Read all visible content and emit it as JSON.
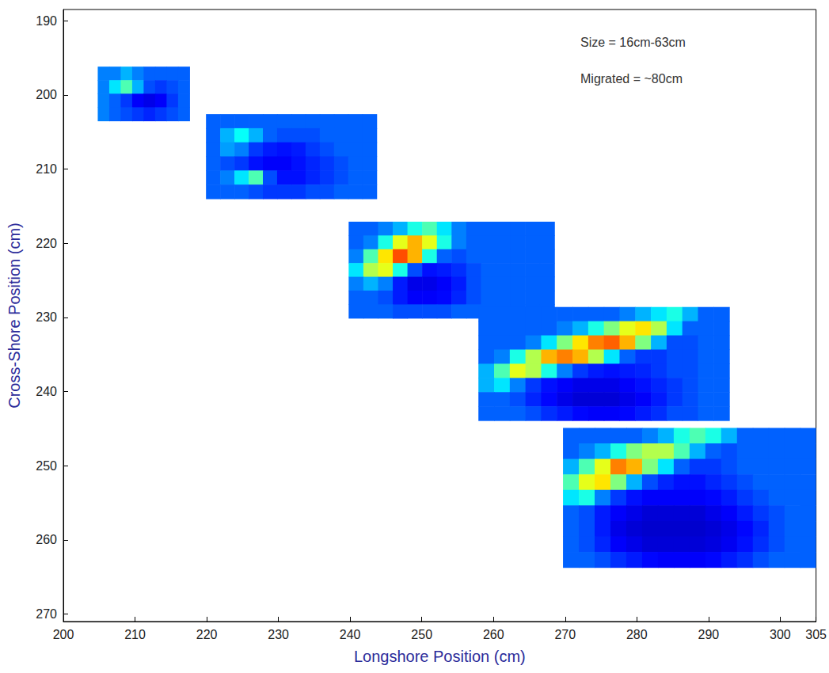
{
  "chart_data": {
    "type": "heatmap",
    "xlabel": "Longshore Position (cm)",
    "ylabel": "Cross-Shore Position (cm)",
    "annotations": [
      "Size = 16cm-63cm",
      "Migrated = ~80cm"
    ],
    "xlim": [
      200,
      305
    ],
    "ylim": [
      188.5,
      271
    ],
    "xticks": [
      200,
      210,
      220,
      230,
      240,
      250,
      260,
      270,
      280,
      290,
      300
    ],
    "yticks": [
      190,
      200,
      210,
      220,
      230,
      240,
      250,
      260,
      270
    ],
    "grid": false,
    "color_range": [
      0,
      1
    ],
    "patches": [
      {
        "x": [
          204.8,
          217.6
        ],
        "y": [
          196.2,
          203.5
        ],
        "values": [
          [
            0.25,
            0.25,
            0.3,
            0.25,
            0.22,
            0.22,
            0.22,
            0.22
          ],
          [
            0.25,
            0.35,
            0.45,
            0.3,
            0.2,
            0.18,
            0.2,
            0.22
          ],
          [
            0.25,
            0.22,
            0.18,
            0.12,
            0.1,
            0.12,
            0.18,
            0.22
          ],
          [
            0.25,
            0.22,
            0.2,
            0.18,
            0.16,
            0.18,
            0.2,
            0.22
          ]
        ]
      },
      {
        "x": [
          219.9,
          243.7
        ],
        "y": [
          202.6,
          214.0
        ],
        "values": [
          [
            0.22,
            0.22,
            0.22,
            0.22,
            0.22,
            0.22,
            0.22,
            0.22,
            0.22,
            0.22,
            0.22,
            0.22
          ],
          [
            0.22,
            0.3,
            0.38,
            0.3,
            0.22,
            0.2,
            0.2,
            0.2,
            0.22,
            0.22,
            0.22,
            0.22
          ],
          [
            0.22,
            0.28,
            0.25,
            0.18,
            0.15,
            0.14,
            0.15,
            0.18,
            0.2,
            0.22,
            0.22,
            0.22
          ],
          [
            0.22,
            0.2,
            0.18,
            0.14,
            0.12,
            0.12,
            0.14,
            0.16,
            0.18,
            0.2,
            0.22,
            0.22
          ],
          [
            0.22,
            0.25,
            0.35,
            0.45,
            0.2,
            0.14,
            0.14,
            0.16,
            0.18,
            0.2,
            0.22,
            0.22
          ],
          [
            0.22,
            0.22,
            0.22,
            0.2,
            0.18,
            0.18,
            0.18,
            0.2,
            0.2,
            0.22,
            0.22,
            0.22
          ]
        ]
      },
      {
        "x": [
          239.8,
          268.5
        ],
        "y": [
          217.1,
          230.1
        ],
        "values": [
          [
            0.22,
            0.22,
            0.25,
            0.3,
            0.4,
            0.45,
            0.35,
            0.25,
            0.22,
            0.22,
            0.22,
            0.22,
            0.22,
            0.22
          ],
          [
            0.22,
            0.25,
            0.4,
            0.6,
            0.7,
            0.6,
            0.4,
            0.25,
            0.22,
            0.22,
            0.22,
            0.22,
            0.22,
            0.22
          ],
          [
            0.25,
            0.45,
            0.65,
            0.8,
            0.7,
            0.4,
            0.22,
            0.2,
            0.22,
            0.22,
            0.22,
            0.22,
            0.22,
            0.22
          ],
          [
            0.35,
            0.55,
            0.6,
            0.4,
            0.2,
            0.14,
            0.15,
            0.17,
            0.2,
            0.22,
            0.22,
            0.22,
            0.22,
            0.22
          ],
          [
            0.25,
            0.3,
            0.25,
            0.15,
            0.1,
            0.1,
            0.12,
            0.15,
            0.2,
            0.22,
            0.22,
            0.22,
            0.22,
            0.22
          ],
          [
            0.22,
            0.22,
            0.2,
            0.15,
            0.12,
            0.12,
            0.13,
            0.16,
            0.2,
            0.22,
            0.22,
            0.22,
            0.22,
            0.22
          ],
          [
            0.22,
            0.22,
            0.22,
            0.2,
            0.2,
            0.2,
            0.2,
            0.22,
            0.22,
            0.22,
            0.22,
            0.22,
            0.22,
            0.22
          ]
        ]
      },
      {
        "x": [
          257.9,
          292.9
        ],
        "y": [
          228.6,
          243.9
        ],
        "values": [
          [
            0.22,
            0.22,
            0.22,
            0.22,
            0.22,
            0.22,
            0.22,
            0.22,
            0.22,
            0.25,
            0.3,
            0.35,
            0.4,
            0.3,
            0.22,
            0.22
          ],
          [
            0.22,
            0.22,
            0.22,
            0.22,
            0.22,
            0.25,
            0.3,
            0.4,
            0.5,
            0.6,
            0.65,
            0.55,
            0.35,
            0.22,
            0.22,
            0.22
          ],
          [
            0.22,
            0.22,
            0.22,
            0.25,
            0.35,
            0.5,
            0.65,
            0.75,
            0.78,
            0.7,
            0.5,
            0.3,
            0.2,
            0.2,
            0.22,
            0.22
          ],
          [
            0.22,
            0.25,
            0.4,
            0.55,
            0.7,
            0.75,
            0.7,
            0.55,
            0.35,
            0.22,
            0.18,
            0.18,
            0.2,
            0.2,
            0.22,
            0.22
          ],
          [
            0.3,
            0.45,
            0.6,
            0.55,
            0.4,
            0.25,
            0.18,
            0.15,
            0.14,
            0.15,
            0.16,
            0.18,
            0.2,
            0.2,
            0.22,
            0.22
          ],
          [
            0.3,
            0.35,
            0.25,
            0.18,
            0.14,
            0.12,
            0.1,
            0.1,
            0.1,
            0.12,
            0.14,
            0.16,
            0.18,
            0.2,
            0.22,
            0.22
          ],
          [
            0.22,
            0.22,
            0.2,
            0.16,
            0.13,
            0.1,
            0.08,
            0.08,
            0.08,
            0.1,
            0.12,
            0.15,
            0.18,
            0.2,
            0.22,
            0.22
          ],
          [
            0.22,
            0.22,
            0.22,
            0.2,
            0.17,
            0.15,
            0.13,
            0.12,
            0.12,
            0.13,
            0.15,
            0.17,
            0.2,
            0.2,
            0.22,
            0.22
          ]
        ]
      },
      {
        "x": [
          269.7,
          305
        ],
        "y": [
          244.9,
          263.7
        ],
        "values": [
          [
            0.22,
            0.22,
            0.22,
            0.22,
            0.22,
            0.25,
            0.3,
            0.4,
            0.45,
            0.4,
            0.3,
            0.22,
            0.22,
            0.22,
            0.22,
            0.22
          ],
          [
            0.22,
            0.25,
            0.3,
            0.4,
            0.5,
            0.55,
            0.55,
            0.45,
            0.3,
            0.22,
            0.2,
            0.22,
            0.22,
            0.22,
            0.22,
            0.22
          ],
          [
            0.3,
            0.45,
            0.6,
            0.75,
            0.7,
            0.5,
            0.35,
            0.22,
            0.18,
            0.18,
            0.2,
            0.22,
            0.22,
            0.22,
            0.22,
            0.22
          ],
          [
            0.45,
            0.6,
            0.65,
            0.5,
            0.3,
            0.2,
            0.16,
            0.14,
            0.14,
            0.16,
            0.18,
            0.2,
            0.22,
            0.22,
            0.22,
            0.22
          ],
          [
            0.35,
            0.4,
            0.25,
            0.18,
            0.14,
            0.12,
            0.12,
            0.12,
            0.12,
            0.13,
            0.15,
            0.18,
            0.2,
            0.22,
            0.22,
            0.22
          ],
          [
            0.22,
            0.2,
            0.15,
            0.12,
            0.1,
            0.08,
            0.08,
            0.08,
            0.08,
            0.1,
            0.12,
            0.15,
            0.18,
            0.2,
            0.22,
            0.22
          ],
          [
            0.22,
            0.2,
            0.15,
            0.1,
            0.08,
            0.07,
            0.07,
            0.07,
            0.07,
            0.08,
            0.1,
            0.13,
            0.16,
            0.2,
            0.22,
            0.22
          ],
          [
            0.22,
            0.2,
            0.16,
            0.12,
            0.1,
            0.08,
            0.08,
            0.08,
            0.08,
            0.09,
            0.11,
            0.14,
            0.17,
            0.2,
            0.22,
            0.22
          ],
          [
            0.22,
            0.22,
            0.2,
            0.17,
            0.15,
            0.13,
            0.12,
            0.12,
            0.12,
            0.13,
            0.15,
            0.17,
            0.2,
            0.22,
            0.22,
            0.22
          ]
        ]
      }
    ]
  }
}
